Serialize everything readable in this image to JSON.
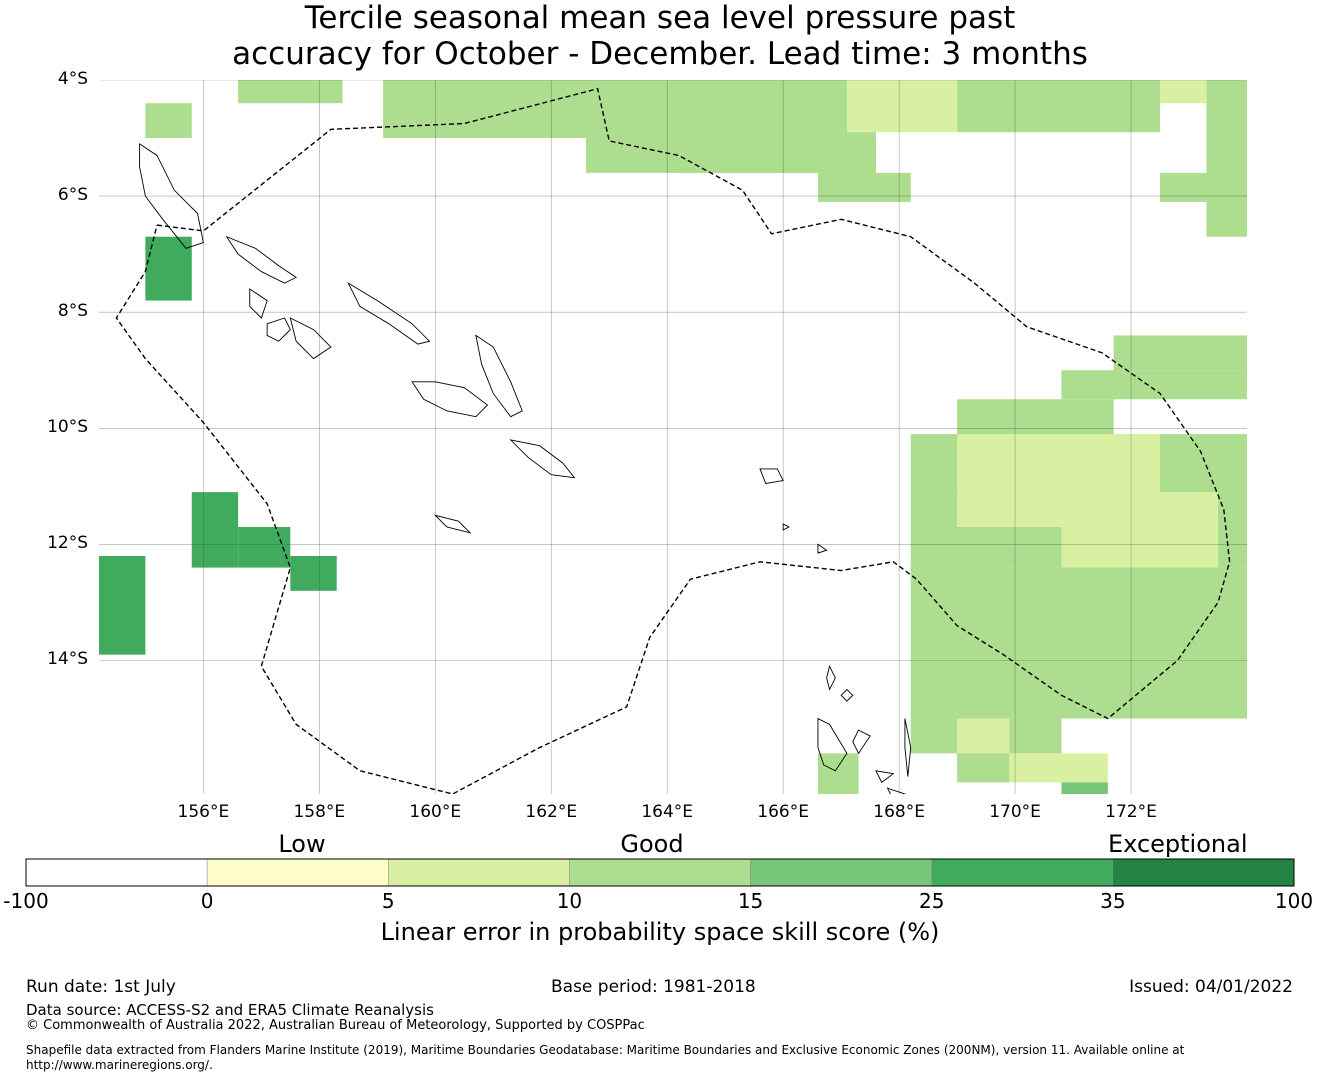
{
  "title_line1": "Tercile seasonal mean sea level pressure past",
  "title_line2": "accuracy for October - December. Lead time: 3 months",
  "map": {
    "lon_range": [
      154.2,
      174.0
    ],
    "lat_range": [
      -16.3,
      -4.0
    ],
    "lat_ticks": [
      {
        "value": -4,
        "label": "4°S"
      },
      {
        "value": -6,
        "label": "6°S"
      },
      {
        "value": -8,
        "label": "8°S"
      },
      {
        "value": -10,
        "label": "10°S"
      },
      {
        "value": -12,
        "label": "12°S"
      },
      {
        "value": -14,
        "label": "14°S"
      }
    ],
    "lon_ticks": [
      {
        "value": 156,
        "label": "156°E"
      },
      {
        "value": 158,
        "label": "158°E"
      },
      {
        "value": 160,
        "label": "160°E"
      },
      {
        "value": 162,
        "label": "162°E"
      },
      {
        "value": 164,
        "label": "164°E"
      },
      {
        "value": 166,
        "label": "166°E"
      },
      {
        "value": 168,
        "label": "168°E"
      },
      {
        "value": 170,
        "label": "170°E"
      },
      {
        "value": 172,
        "label": "172°E"
      }
    ],
    "eez_boundary": [
      [
        155.2,
        -6.5
      ],
      [
        156.0,
        -6.6
      ],
      [
        158.2,
        -4.85
      ],
      [
        160.5,
        -4.75
      ],
      [
        162.8,
        -4.15
      ],
      [
        163.0,
        -5.05
      ],
      [
        164.2,
        -5.3
      ],
      [
        165.3,
        -5.9
      ],
      [
        165.8,
        -6.65
      ],
      [
        167.0,
        -6.4
      ],
      [
        168.2,
        -6.7
      ],
      [
        169.3,
        -7.5
      ],
      [
        170.2,
        -8.25
      ],
      [
        171.5,
        -8.7
      ],
      [
        172.5,
        -9.4
      ],
      [
        173.2,
        -10.4
      ],
      [
        173.6,
        -11.4
      ],
      [
        173.7,
        -12.3
      ],
      [
        173.5,
        -13.0
      ],
      [
        172.8,
        -14.0
      ],
      [
        171.6,
        -15.0
      ],
      [
        170.8,
        -14.6
      ],
      [
        169.8,
        -13.9
      ],
      [
        169.0,
        -13.4
      ],
      [
        168.3,
        -12.6
      ],
      [
        167.9,
        -12.3
      ],
      [
        167.0,
        -12.45
      ],
      [
        165.6,
        -12.3
      ],
      [
        164.4,
        -12.6
      ],
      [
        163.7,
        -13.6
      ],
      [
        163.3,
        -14.8
      ],
      [
        161.8,
        -15.5
      ],
      [
        160.3,
        -16.3
      ],
      [
        158.7,
        -15.9
      ],
      [
        157.6,
        -15.1
      ],
      [
        157.0,
        -14.1
      ],
      [
        157.5,
        -12.4
      ],
      [
        157.1,
        -11.3
      ],
      [
        156.0,
        -9.9
      ],
      [
        155.0,
        -8.8
      ],
      [
        154.5,
        -8.1
      ],
      [
        155.0,
        -7.3
      ],
      [
        155.2,
        -6.5
      ]
    ],
    "islands": [
      [
        [
          154.9,
          -5.1
        ],
        [
          155.2,
          -5.3
        ],
        [
          155.5,
          -5.9
        ],
        [
          155.9,
          -6.3
        ],
        [
          156.0,
          -6.8
        ],
        [
          155.7,
          -6.9
        ],
        [
          155.3,
          -6.4
        ],
        [
          155.0,
          -6.0
        ],
        [
          154.9,
          -5.5
        ],
        [
          154.9,
          -5.1
        ]
      ],
      [
        [
          156.4,
          -6.7
        ],
        [
          156.9,
          -6.9
        ],
        [
          157.3,
          -7.2
        ],
        [
          157.6,
          -7.4
        ],
        [
          157.4,
          -7.5
        ],
        [
          157.0,
          -7.3
        ],
        [
          156.6,
          -7.0
        ],
        [
          156.4,
          -6.7
        ]
      ],
      [
        [
          156.8,
          -7.6
        ],
        [
          157.1,
          -7.8
        ],
        [
          157.0,
          -8.1
        ],
        [
          156.8,
          -7.9
        ],
        [
          156.8,
          -7.6
        ]
      ],
      [
        [
          157.1,
          -8.2
        ],
        [
          157.4,
          -8.1
        ],
        [
          157.5,
          -8.3
        ],
        [
          157.3,
          -8.5
        ],
        [
          157.1,
          -8.4
        ],
        [
          157.1,
          -8.2
        ]
      ],
      [
        [
          157.5,
          -8.1
        ],
        [
          157.9,
          -8.3
        ],
        [
          158.2,
          -8.6
        ],
        [
          157.9,
          -8.8
        ],
        [
          157.6,
          -8.5
        ],
        [
          157.5,
          -8.1
        ]
      ],
      [
        [
          158.5,
          -7.5
        ],
        [
          159.0,
          -7.8
        ],
        [
          159.6,
          -8.2
        ],
        [
          159.9,
          -8.5
        ],
        [
          159.7,
          -8.55
        ],
        [
          159.2,
          -8.2
        ],
        [
          158.7,
          -7.9
        ],
        [
          158.5,
          -7.5
        ]
      ],
      [
        [
          159.6,
          -9.2
        ],
        [
          160.0,
          -9.2
        ],
        [
          160.5,
          -9.3
        ],
        [
          160.9,
          -9.6
        ],
        [
          160.7,
          -9.8
        ],
        [
          160.2,
          -9.7
        ],
        [
          159.8,
          -9.5
        ],
        [
          159.6,
          -9.2
        ]
      ],
      [
        [
          160.7,
          -8.4
        ],
        [
          161.0,
          -8.6
        ],
        [
          161.3,
          -9.2
        ],
        [
          161.5,
          -9.7
        ],
        [
          161.3,
          -9.8
        ],
        [
          161.0,
          -9.4
        ],
        [
          160.8,
          -8.9
        ],
        [
          160.7,
          -8.4
        ]
      ],
      [
        [
          161.3,
          -10.2
        ],
        [
          161.8,
          -10.3
        ],
        [
          162.2,
          -10.6
        ],
        [
          162.4,
          -10.85
        ],
        [
          162.0,
          -10.8
        ],
        [
          161.6,
          -10.5
        ],
        [
          161.3,
          -10.2
        ]
      ],
      [
        [
          160.0,
          -11.5
        ],
        [
          160.4,
          -11.6
        ],
        [
          160.6,
          -11.8
        ],
        [
          160.2,
          -11.7
        ],
        [
          160.0,
          -11.5
        ]
      ],
      [
        [
          165.6,
          -10.7
        ],
        [
          165.9,
          -10.7
        ],
        [
          166.0,
          -10.9
        ],
        [
          165.7,
          -10.95
        ],
        [
          165.6,
          -10.7
        ]
      ],
      [
        [
          166.8,
          -14.1
        ],
        [
          166.9,
          -14.3
        ],
        [
          166.8,
          -14.5
        ],
        [
          166.75,
          -14.3
        ],
        [
          166.8,
          -14.1
        ]
      ],
      [
        [
          167.1,
          -14.5
        ],
        [
          167.2,
          -14.6
        ],
        [
          167.1,
          -14.7
        ],
        [
          167.0,
          -14.6
        ],
        [
          167.1,
          -14.5
        ]
      ],
      [
        [
          166.6,
          -15.0
        ],
        [
          166.8,
          -15.1
        ],
        [
          167.1,
          -15.6
        ],
        [
          166.9,
          -15.9
        ],
        [
          166.7,
          -15.8
        ],
        [
          166.6,
          -15.5
        ],
        [
          166.6,
          -15.0
        ]
      ],
      [
        [
          167.3,
          -15.2
        ],
        [
          167.5,
          -15.3
        ],
        [
          167.3,
          -15.6
        ],
        [
          167.2,
          -15.4
        ],
        [
          167.3,
          -15.2
        ]
      ],
      [
        [
          167.6,
          -15.9
        ],
        [
          167.9,
          -15.95
        ],
        [
          167.7,
          -16.1
        ],
        [
          167.6,
          -15.9
        ]
      ],
      [
        [
          168.1,
          -15.0
        ],
        [
          168.2,
          -15.5
        ],
        [
          168.15,
          -16.0
        ],
        [
          168.1,
          -15.5
        ],
        [
          168.1,
          -15.0
        ]
      ],
      [
        [
          167.8,
          -16.2
        ],
        [
          168.1,
          -16.3
        ],
        [
          167.9,
          -16.4
        ],
        [
          167.8,
          -16.2
        ]
      ],
      [
        [
          166.6,
          -12.0
        ],
        [
          166.75,
          -12.1
        ],
        [
          166.6,
          -12.15
        ],
        [
          166.6,
          -12.0
        ]
      ],
      [
        [
          166.0,
          -11.65
        ],
        [
          166.1,
          -11.7
        ],
        [
          166.0,
          -11.75
        ],
        [
          166.0,
          -11.65
        ]
      ]
    ]
  },
  "colorbar": {
    "categories": [
      {
        "label": "Low"
      },
      {
        "label": "Good"
      },
      {
        "label": "Exceptional"
      }
    ],
    "bins": [
      {
        "from": -100,
        "to": 0,
        "color": "#ffffff"
      },
      {
        "from": 0,
        "to": 5,
        "color": "#ffffcc"
      },
      {
        "from": 5,
        "to": 10,
        "color": "#d9f0a3"
      },
      {
        "from": 10,
        "to": 15,
        "color": "#addd8e"
      },
      {
        "from": 15,
        "to": 25,
        "color": "#78c679"
      },
      {
        "from": 25,
        "to": 35,
        "color": "#41ab5d"
      },
      {
        "from": 35,
        "to": 100,
        "color": "#238443"
      }
    ],
    "ticks": [
      "-100",
      "0",
      "5",
      "10",
      "15",
      "25",
      "35",
      "100"
    ],
    "label": "Linear error in probability space skill score (%)"
  },
  "footer": {
    "run_date": "Run date: 1st July",
    "base_period": "Base period: 1981-2018",
    "issued": "Issued: 04/01/2022",
    "data_source": "Data source: ACCESS-S2 and ERA5 Climate Reanalysis",
    "copyright": "© Commonwealth of Australia 2022, Australian Bureau of Meteorology, Supported by COSPPac",
    "shapefile_line1": "Shapefile data extracted from Flanders Marine Institute (2019), Maritime Boundaries Geodatabase: Maritime Boundaries and Exclusive Economic Zones (200NM), version 11. Available online at",
    "shapefile_line2": "http://www.marineregions.org/."
  }
}
